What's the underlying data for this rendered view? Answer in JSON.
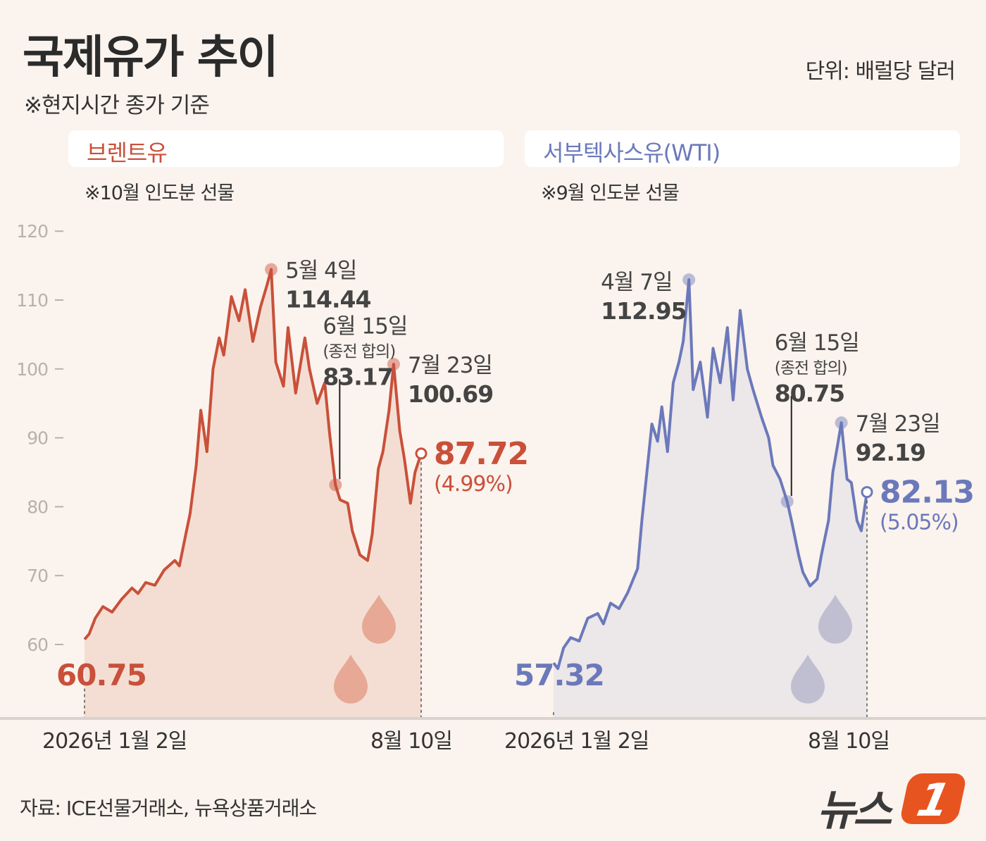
{
  "header": {
    "title": "국제유가 추이",
    "unit": "단위: 배럴당 달러",
    "subtitle": "※현지시간 종가 기준"
  },
  "footer": {
    "source": "자료: ICE선물거래소, 뉴욕상품거래소",
    "logo_text": "뉴스",
    "logo_badge": "1"
  },
  "colors": {
    "brent": "#c9503a",
    "brent_fill": "#f4ded3",
    "wti": "#6b79bb",
    "wti_fill": "#ece7e8",
    "background": "#fbf3ed"
  },
  "chart_data": [
    {
      "type": "line",
      "panel_title": "브렌트유",
      "note": "※10월 인도분 선물",
      "x_start_label": "2026년 1월 2일",
      "x_end_label": "8월 10일",
      "y_ticks": [
        "120",
        "110",
        "100",
        "90",
        "80",
        "70",
        "60"
      ],
      "ylim": [
        50,
        122
      ],
      "x_dates": [
        "2026-01-02",
        "2026-01-05",
        "2026-01-09",
        "2026-01-14",
        "2026-01-20",
        "2026-01-26",
        "2026-02-02",
        "2026-02-06",
        "2026-02-11",
        "2026-02-17",
        "2026-02-23",
        "2026-03-02",
        "2026-03-05",
        "2026-03-09",
        "2026-03-12",
        "2026-03-16",
        "2026-03-19",
        "2026-03-23",
        "2026-03-27",
        "2026-03-31",
        "2026-04-03",
        "2026-04-08",
        "2026-04-13",
        "2026-04-17",
        "2026-04-22",
        "2026-04-27",
        "2026-05-01",
        "2026-05-04",
        "2026-05-07",
        "2026-05-12",
        "2026-05-15",
        "2026-05-20",
        "2026-05-26",
        "2026-05-29",
        "2026-06-03",
        "2026-06-08",
        "2026-06-11",
        "2026-06-15",
        "2026-06-18",
        "2026-06-23",
        "2026-06-26",
        "2026-07-01",
        "2026-07-06",
        "2026-07-09",
        "2026-07-13",
        "2026-07-16",
        "2026-07-20",
        "2026-07-23",
        "2026-07-27",
        "2026-07-30",
        "2026-08-03",
        "2026-08-06",
        "2026-08-10"
      ],
      "values": [
        60.75,
        61.5,
        63.8,
        65.5,
        64.7,
        66.5,
        68.2,
        67.4,
        69.0,
        68.6,
        70.8,
        72.2,
        71.4,
        75.8,
        79.0,
        86.0,
        94.0,
        88.0,
        100.0,
        104.5,
        102.0,
        110.5,
        107.0,
        111.5,
        104.0,
        109.0,
        112.0,
        114.44,
        101.0,
        97.5,
        106.0,
        96.5,
        104.5,
        100.0,
        95.0,
        98.0,
        91.0,
        83.17,
        81.0,
        80.5,
        76.5,
        73.0,
        72.2,
        76.0,
        85.5,
        88.0,
        94.0,
        100.69,
        91.0,
        87.0,
        80.5,
        85.0,
        87.72
      ],
      "annotations": [
        {
          "date": "5월 4일",
          "value": "114.44"
        },
        {
          "date": "6월 15일",
          "sub": "(종전 합의)",
          "value": "83.17"
        },
        {
          "date": "7월 23일",
          "value": "100.69"
        }
      ],
      "start_value_label": "60.75",
      "end_value_label": "87.72",
      "end_change_label": "(4.99%)"
    },
    {
      "type": "line",
      "panel_title": "서부텍사스유(WTI)",
      "note": "※9월 인도분 선물",
      "x_start_label": "2026년 1월 2일",
      "x_end_label": "8월 10일",
      "ylim": [
        50,
        122
      ],
      "x_dates": [
        "2026-01-02",
        "2026-01-05",
        "2026-01-09",
        "2026-01-14",
        "2026-01-20",
        "2026-01-26",
        "2026-02-02",
        "2026-02-06",
        "2026-02-11",
        "2026-02-17",
        "2026-02-23",
        "2026-03-02",
        "2026-03-05",
        "2026-03-09",
        "2026-03-12",
        "2026-03-16",
        "2026-03-19",
        "2026-03-23",
        "2026-03-27",
        "2026-03-31",
        "2026-04-03",
        "2026-04-07",
        "2026-04-10",
        "2026-04-15",
        "2026-04-20",
        "2026-04-24",
        "2026-04-29",
        "2026-05-04",
        "2026-05-08",
        "2026-05-13",
        "2026-05-18",
        "2026-05-22",
        "2026-05-28",
        "2026-06-02",
        "2026-06-05",
        "2026-06-10",
        "2026-06-15",
        "2026-06-18",
        "2026-06-23",
        "2026-06-26",
        "2026-07-01",
        "2026-07-06",
        "2026-07-09",
        "2026-07-14",
        "2026-07-17",
        "2026-07-20",
        "2026-07-23",
        "2026-07-27",
        "2026-07-30",
        "2026-08-03",
        "2026-08-06",
        "2026-08-10"
      ],
      "values": [
        57.32,
        56.5,
        59.5,
        61.0,
        60.5,
        63.8,
        64.5,
        63.0,
        66.0,
        65.2,
        67.5,
        71.0,
        78.0,
        86.0,
        92.0,
        89.5,
        94.5,
        88.0,
        98.0,
        101.0,
        104.0,
        112.95,
        97.0,
        101.0,
        93.0,
        103.0,
        98.0,
        106.0,
        95.5,
        108.5,
        100.0,
        97.0,
        93.0,
        90.0,
        86.0,
        84.0,
        80.75,
        78.0,
        73.0,
        70.5,
        68.5,
        69.5,
        73.0,
        78.0,
        85.0,
        88.5,
        92.19,
        84.0,
        83.5,
        78.0,
        76.5,
        82.13
      ],
      "annotations": [
        {
          "date": "4월 7일",
          "value": "112.95"
        },
        {
          "date": "6월 15일",
          "sub": "(종전 합의)",
          "value": "80.75"
        },
        {
          "date": "7월 23일",
          "value": "92.19"
        }
      ],
      "start_value_label": "57.32",
      "end_value_label": "82.13",
      "end_change_label": "(5.05%)"
    }
  ]
}
